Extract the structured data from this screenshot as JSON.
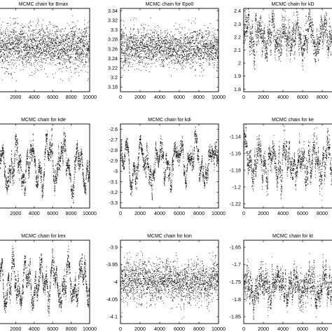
{
  "chart_data": [
    {
      "type": "scatter",
      "title": "MCMC chain for Bmax",
      "x_ticks": [
        "2000",
        "4000",
        "6000",
        "8000",
        "10000"
      ],
      "y_ticks": [],
      "xlim": [
        0,
        10000
      ],
      "ylim": [
        0,
        1
      ],
      "series": [
        {
          "n": 10000,
          "mean": 0.55,
          "sd": 0.13,
          "rho": 0.2,
          "waves": []
        }
      ]
    },
    {
      "type": "scatter",
      "title": "MCMC chain for Epo0",
      "x_ticks": [
        "0",
        "2000",
        "4000",
        "6000",
        "8000",
        "10000"
      ],
      "y_ticks": [
        "3.34",
        "3.32",
        "3.3",
        "3.28",
        "3.26",
        "3.24",
        "3.22",
        "3.2",
        "3.18"
      ],
      "xlim": [
        0,
        10000
      ],
      "ylim": [
        3.17,
        3.345
      ],
      "series": [
        {
          "n": 10000,
          "mean": 3.263,
          "sd": 0.02,
          "rho": 0.3,
          "waves": []
        }
      ]
    },
    {
      "type": "scatter",
      "title": "MCMC chain for kD",
      "x_ticks": [
        "0",
        "2000",
        "4000",
        "6000",
        "8000",
        "10000"
      ],
      "y_ticks": [
        "2.4",
        "2.3",
        "2.2",
        "2.1",
        "2",
        "1.9",
        "1.8"
      ],
      "xlim": [
        0,
        10000
      ],
      "ylim": [
        1.78,
        2.42
      ],
      "series": [
        {
          "n": 10000,
          "mean": 2.2,
          "sd": 0.07,
          "rho": 0.8,
          "waves": [
            [
              0.06,
              1300,
              0.5
            ],
            [
              0.04,
              420,
              2.1
            ]
          ]
        }
      ]
    },
    {
      "type": "scatter",
      "title": "MCMC chain for kde",
      "x_ticks": [
        "2000",
        "4000",
        "6000",
        "8000",
        "10000"
      ],
      "y_ticks": [],
      "xlim": [
        0,
        10000
      ],
      "ylim": [
        0,
        1
      ],
      "series": [
        {
          "n": 10000,
          "mean": 0.5,
          "sd": 0.09,
          "rho": 0.9,
          "waves": [
            [
              0.18,
              1700,
              0.3
            ],
            [
              0.1,
              650,
              1.4
            ]
          ]
        }
      ]
    },
    {
      "type": "scatter",
      "title": "MCMC chain for kdi",
      "x_ticks": [
        "0",
        "2000",
        "4000",
        "6000",
        "8000",
        "10000"
      ],
      "y_ticks": [
        "-2.6",
        "-2.7",
        "-2.8",
        "-2.9",
        "-3",
        "-3.1",
        "-3.2",
        "-3.3"
      ],
      "xlim": [
        0,
        10000
      ],
      "ylim": [
        -3.35,
        -2.55
      ],
      "series": [
        {
          "n": 10000,
          "mean": -2.91,
          "sd": 0.07,
          "rho": 0.9,
          "waves": [
            [
              0.13,
              1800,
              0.2
            ],
            [
              0.07,
              700,
              2.0
            ]
          ]
        }
      ]
    },
    {
      "type": "scatter",
      "title": "MCMC chain for ke",
      "x_ticks": [
        "0",
        "2000",
        "4000",
        "6000",
        "8000",
        "10000"
      ],
      "y_ticks": [
        "-1.14",
        "-1.16",
        "-1.18",
        "-1.2",
        "-1.22"
      ],
      "xlim": [
        0,
        10000
      ],
      "ylim": [
        -1.225,
        -1.125
      ],
      "series": [
        {
          "n": 10000,
          "mean": -1.168,
          "sd": 0.011,
          "rho": 0.85,
          "waves": [
            [
              0.014,
              1400,
              1.0
            ],
            [
              0.008,
              500,
              0.3
            ]
          ]
        }
      ]
    },
    {
      "type": "scatter",
      "title": "MCMC chain for kex",
      "x_ticks": [
        "2000",
        "4000",
        "6000",
        "8000",
        "10000"
      ],
      "y_ticks": [],
      "xlim": [
        0,
        10000
      ],
      "ylim": [
        0,
        1
      ],
      "series": [
        {
          "n": 10000,
          "mean": 0.5,
          "sd": 0.09,
          "rho": 0.9,
          "waves": [
            [
              0.17,
              1500,
              0.9
            ],
            [
              0.09,
              600,
              2.5
            ]
          ]
        }
      ]
    },
    {
      "type": "scatter",
      "title": "MCMC chain for kon",
      "x_ticks": [
        "0",
        "2000",
        "4000",
        "6000",
        "8000",
        "10000"
      ],
      "y_ticks": [
        "-3.9",
        "-3.95",
        "-4",
        "-4.05",
        "-4.1"
      ],
      "xlim": [
        0,
        10000
      ],
      "ylim": [
        -4.12,
        -3.88
      ],
      "series": [
        {
          "n": 10000,
          "mean": -3.995,
          "sd": 0.03,
          "rho": 0.5,
          "waves": []
        }
      ]
    },
    {
      "type": "scatter",
      "title": "MCMC chain for kt",
      "x_ticks": [
        "0",
        "2000",
        "4000",
        "6000",
        "8000",
        "10000"
      ],
      "y_ticks": [
        "-1.65",
        "-1.7",
        "-1.75",
        "-1.8",
        "-1.85"
      ],
      "xlim": [
        0,
        10000
      ],
      "ylim": [
        -1.87,
        -1.63
      ],
      "series": [
        {
          "n": 10000,
          "mean": -1.765,
          "sd": 0.025,
          "rho": 0.8,
          "waves": [
            [
              0.025,
              1600,
              0.7
            ]
          ]
        }
      ]
    }
  ]
}
